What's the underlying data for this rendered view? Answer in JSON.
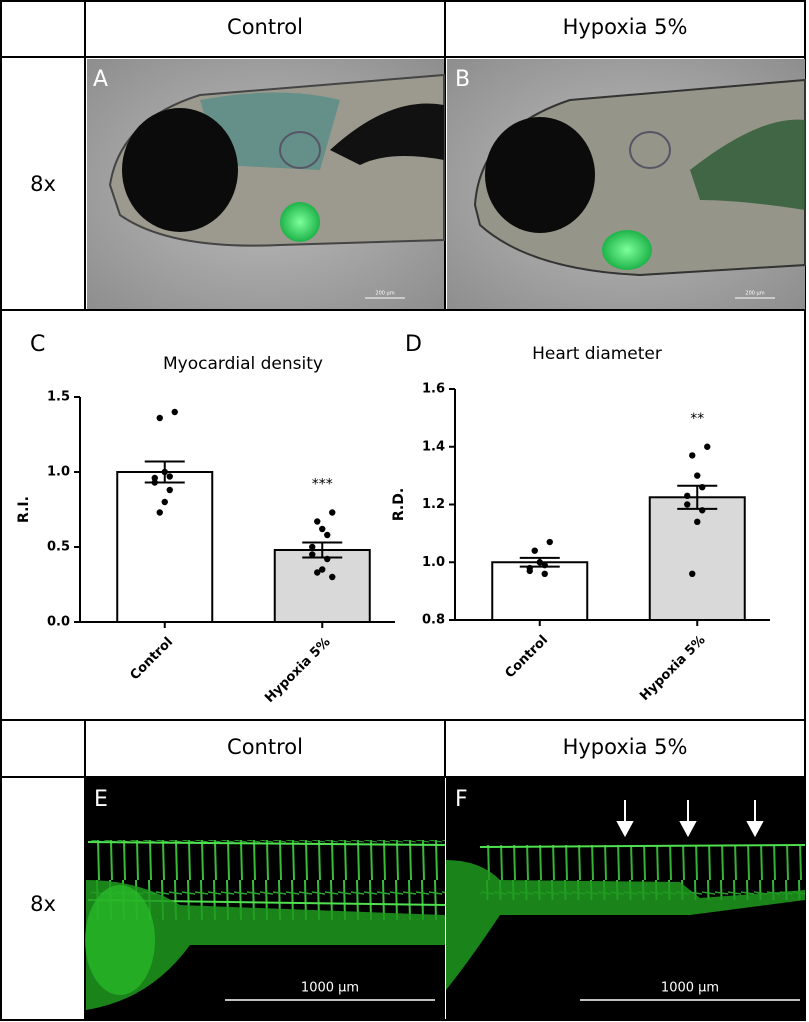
{
  "top_table": {
    "headers": [
      "Control",
      "Hypoxia 5%"
    ],
    "row_label": "8x",
    "panels": [
      {
        "label": "A",
        "scale": "200 µm"
      },
      {
        "label": "B",
        "scale": "200 µm"
      }
    ]
  },
  "chart_data": [
    {
      "type": "bar",
      "panel": "C",
      "title": "Myocardial density",
      "ylabel": "R.I.",
      "categories": [
        "Control",
        "Hypoxia 5%"
      ],
      "values": [
        1.0,
        0.48
      ],
      "errors": [
        0.07,
        0.05
      ],
      "colors": [
        "#ffffff",
        "#d9d9d9"
      ],
      "points": [
        [
          1.4,
          1.36,
          1.0,
          0.97,
          0.96,
          0.93,
          0.88,
          0.8,
          0.73
        ],
        [
          0.73,
          0.67,
          0.62,
          0.58,
          0.5,
          0.45,
          0.42,
          0.35,
          0.33,
          0.3
        ]
      ],
      "significance": "***",
      "ylim": [
        0,
        1.5
      ],
      "yticks": [
        {
          "value": 0,
          "label": "0.0"
        },
        0.5,
        {
          "value": 1,
          "label": "1.0"
        },
        1.5
      ]
    },
    {
      "type": "bar",
      "panel": "D",
      "title": "Heart diameter",
      "ylabel": "R.D.",
      "categories": [
        "Control",
        "Hypoxia 5%"
      ],
      "values": [
        1.0,
        1.225
      ],
      "errors": [
        0.015,
        0.04
      ],
      "colors": [
        "#ffffff",
        "#d9d9d9"
      ],
      "points": [
        [
          1.07,
          1.04,
          1.0,
          0.99,
          0.98,
          0.97,
          0.96
        ],
        [
          1.4,
          1.37,
          1.3,
          1.26,
          1.23,
          1.2,
          1.18,
          1.14,
          0.96
        ]
      ],
      "significance": "**",
      "ylim": [
        0.8,
        1.6
      ],
      "yticks": [
        0.8,
        {
          "value": 1,
          "label": "1.0"
        },
        1.2,
        1.4,
        1.6
      ]
    }
  ],
  "bottom_table": {
    "headers": [
      "Control",
      "Hypoxia 5%"
    ],
    "row_label": "8x",
    "panels": [
      {
        "label": "E",
        "scale": "1000 µm"
      },
      {
        "label": "F",
        "scale": "1000 µm"
      }
    ]
  }
}
